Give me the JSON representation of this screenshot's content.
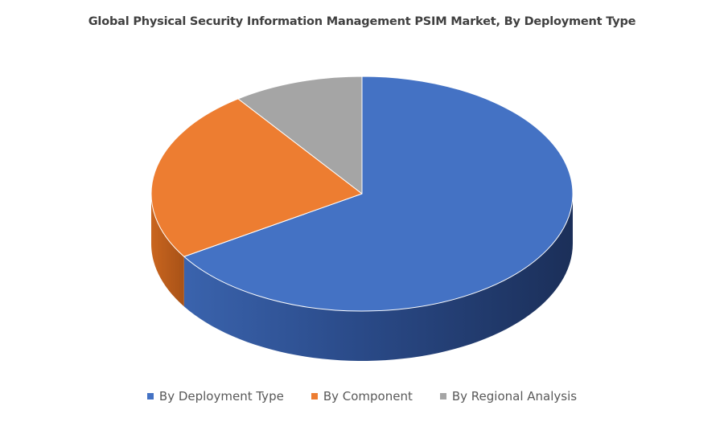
{
  "chart_data": {
    "type": "pie",
    "style": "3d",
    "title": "Global Physical Security Information Management PSIM Market, By Deployment Type",
    "categories": [
      "By Deployment Type",
      "By Component",
      "By Regional Analysis"
    ],
    "values": [
      66,
      24,
      10
    ],
    "colors": [
      "#4472C4",
      "#ED7D31",
      "#A5A5A5"
    ],
    "legend_position": "bottom"
  }
}
